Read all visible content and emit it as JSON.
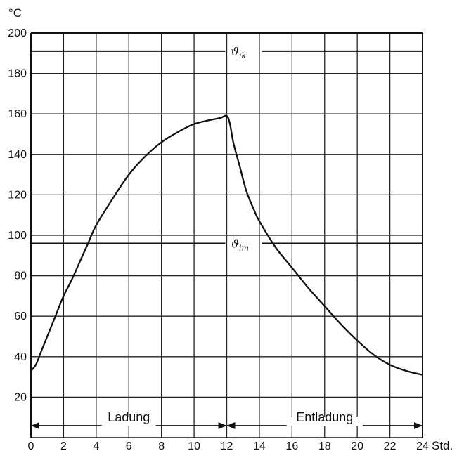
{
  "chart_data": {
    "type": "line",
    "y_unit": "°C",
    "x_unit": "Std.",
    "xlim": [
      0,
      24
    ],
    "ylim": [
      0,
      200
    ],
    "x_ticks": [
      0,
      2,
      4,
      6,
      8,
      10,
      12,
      14,
      16,
      18,
      20,
      22,
      24
    ],
    "y_ticks": [
      20,
      40,
      60,
      80,
      100,
      120,
      140,
      160,
      180,
      200
    ],
    "grid": true,
    "series": [
      {
        "x": [
          0,
          0.3,
          0.6,
          1,
          1.5,
          2,
          2.5,
          3,
          3.5,
          4,
          5,
          6,
          7,
          8,
          9,
          10,
          11,
          11.6,
          12,
          12.2,
          12.4,
          12.8,
          13.2,
          13.7,
          14,
          15,
          16,
          17,
          18,
          19,
          20,
          21,
          22,
          23,
          24
        ],
        "y": [
          33,
          36,
          42,
          50,
          60,
          70,
          78,
          87,
          96,
          105,
          118,
          130,
          139,
          146,
          151,
          155,
          157,
          158,
          159,
          155,
          146,
          134,
          122,
          112,
          107,
          94,
          84,
          74,
          65,
          56,
          48,
          41,
          36,
          33,
          31
        ]
      }
    ],
    "reference_lines": [
      {
        "label": "ϑ",
        "subscript": "ik",
        "y": 191
      },
      {
        "label": "ϑ",
        "subscript": "im",
        "y": 96
      }
    ],
    "spans": [
      {
        "label": "Ladung",
        "x": [
          0,
          12
        ]
      },
      {
        "label": "Entladung",
        "x": [
          12,
          24
        ]
      }
    ]
  }
}
